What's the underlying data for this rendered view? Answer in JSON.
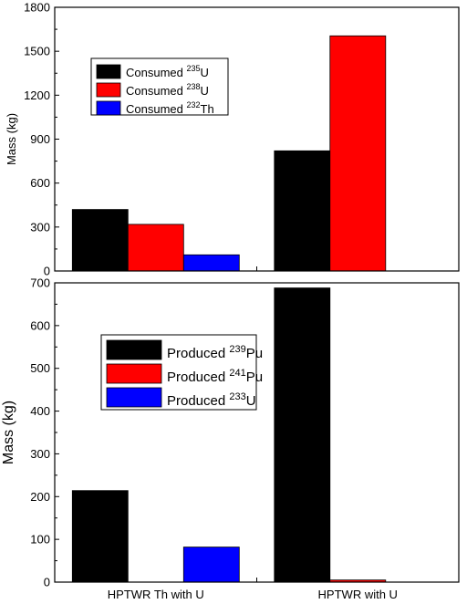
{
  "chart_data": [
    {
      "type": "bar",
      "categories": [
        "HPTWR Th with U",
        "HPTWR with U"
      ],
      "ylabel": "Mass (kg)",
      "ylim": [
        0,
        1800
      ],
      "yticks": [
        0,
        300,
        600,
        900,
        1200,
        1500,
        1800
      ],
      "legend_position": "upper-left",
      "series": [
        {
          "name_prefix": "Consumed ",
          "name_sup": "235",
          "name_suffix": "U",
          "color": "#000000",
          "values": [
            420,
            820
          ]
        },
        {
          "name_prefix": "Consumed ",
          "name_sup": "238",
          "name_suffix": "U",
          "color": "#ff0000",
          "values": [
            318,
            1605
          ]
        },
        {
          "name_prefix": "Consumed ",
          "name_sup": "232",
          "name_suffix": "Th",
          "color": "#0000ff",
          "values": [
            110,
            0
          ]
        }
      ]
    },
    {
      "type": "bar",
      "categories": [
        "HPTWR Th with U",
        "HPTWR with U"
      ],
      "ylabel": "Mass (kg)",
      "ylim": [
        0,
        700
      ],
      "yticks": [
        0,
        100,
        200,
        300,
        400,
        500,
        600,
        700
      ],
      "legend_position": "middle-left",
      "series": [
        {
          "name_prefix": "Produced ",
          "name_sup": "239",
          "name_suffix": "Pu",
          "color": "#000000",
          "values": [
            214,
            688
          ]
        },
        {
          "name_prefix": "Produced ",
          "name_sup": "241",
          "name_suffix": "Pu",
          "color": "#ff0000",
          "values": [
            0,
            5
          ]
        },
        {
          "name_prefix": "Produced ",
          "name_sup": "233",
          "name_suffix": "U",
          "color": "#0000ff",
          "values": [
            82,
            0
          ]
        }
      ]
    }
  ]
}
